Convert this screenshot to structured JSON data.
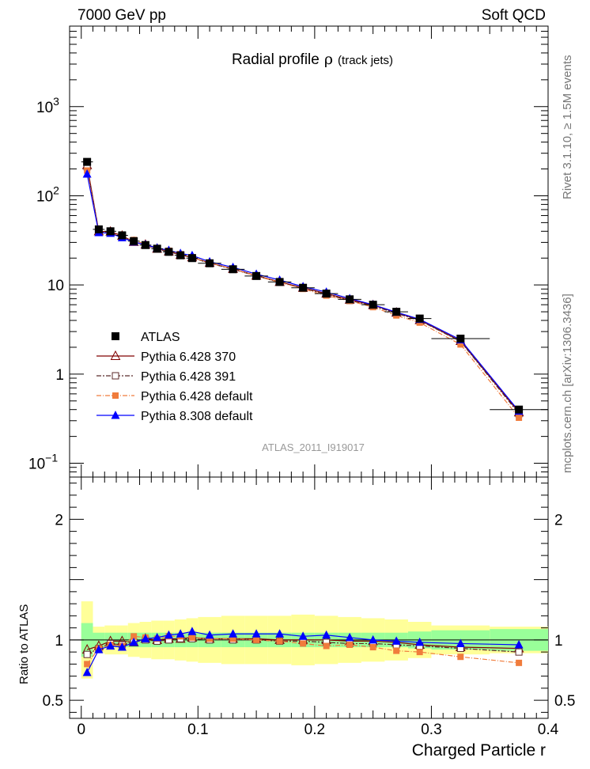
{
  "header": {
    "left": "7000 GeV pp",
    "right": "Soft QCD"
  },
  "chart_data": {
    "type": "line",
    "title": "Radial profile",
    "title_symbol": "ρ",
    "title_sub": "(track jets)",
    "analysis": "ATLAS_2011_I919017",
    "side_text_top": "Rivet 3.1.10, ≥ 1.5M events",
    "side_text_bottom": "mcplots.cern.ch [arXiv:1306.3436]",
    "xlabel": "Charged Particle r",
    "ratio_ylabel": "Ratio to ATLAS",
    "xlim": [
      -0.01,
      0.4
    ],
    "ylim": [
      0.07,
      8000
    ],
    "yscale": "log",
    "ratio_ylim": [
      0.35,
      2.35
    ],
    "x_ticks": [
      "0",
      "0.1",
      "0.2",
      "0.3",
      "0.4"
    ],
    "y_ticks": [
      "10⁻¹",
      "1",
      "10",
      "10²",
      "10³"
    ],
    "ratio_y_ticks": [
      "0.5",
      "1",
      "2"
    ],
    "legend_position": "lower-left",
    "x": [
      0.005,
      0.015,
      0.025,
      0.035,
      0.045,
      0.055,
      0.065,
      0.075,
      0.085,
      0.095,
      0.11,
      0.13,
      0.15,
      0.17,
      0.19,
      0.21,
      0.23,
      0.25,
      0.27,
      0.29,
      0.325,
      0.375
    ],
    "x_err": [
      0.005,
      0.005,
      0.005,
      0.005,
      0.005,
      0.005,
      0.005,
      0.005,
      0.005,
      0.005,
      0.01,
      0.01,
      0.01,
      0.01,
      0.01,
      0.01,
      0.01,
      0.01,
      0.01,
      0.01,
      0.025,
      0.025
    ],
    "data_series": {
      "name": "ATLAS",
      "color": "#000000",
      "values": [
        240,
        42,
        40,
        36,
        31,
        28,
        25.5,
        23.5,
        21.5,
        20,
        17.5,
        15,
        12.6,
        10.8,
        9.3,
        8,
        6.9,
        6,
        5,
        4.2,
        2.5,
        0.4
      ],
      "band_inner": [
        0.14,
        0.06,
        0.06,
        0.06,
        0.06,
        0.06,
        0.06,
        0.06,
        0.06,
        0.06,
        0.06,
        0.06,
        0.06,
        0.06,
        0.06,
        0.06,
        0.06,
        0.06,
        0.06,
        0.07,
        0.08,
        0.09
      ],
      "band_outer": [
        0.32,
        0.11,
        0.12,
        0.12,
        0.14,
        0.15,
        0.16,
        0.16,
        0.17,
        0.18,
        0.19,
        0.2,
        0.2,
        0.2,
        0.21,
        0.2,
        0.19,
        0.18,
        0.17,
        0.15,
        0.12,
        0.11
      ]
    },
    "series": [
      {
        "name": "Pythia 6.428 370",
        "color": "#800000",
        "marker": "triangle-open",
        "dash": "",
        "ratio": [
          0.92,
          0.95,
          0.99,
          0.99,
          0.98,
          1.01,
          1.0,
          1.01,
          1.01,
          1.02,
          1.01,
          1.01,
          1.01,
          1.0,
          1.0,
          1.0,
          0.99,
          0.99,
          0.98,
          0.96,
          0.94,
          0.93
        ]
      },
      {
        "name": "Pythia 6.428 391",
        "color": "#5b2a2a",
        "marker": "square-open",
        "dash": "6,2,2,2",
        "ratio": [
          0.88,
          0.93,
          0.97,
          0.96,
          0.98,
          1.0,
          0.99,
          1.0,
          1.01,
          1.01,
          1.0,
          1.0,
          1.0,
          0.99,
          0.99,
          0.98,
          0.97,
          0.97,
          0.96,
          0.95,
          0.93,
          0.9
        ]
      },
      {
        "name": "Pythia 6.428 default",
        "color": "#f07c3c",
        "marker": "square-filled",
        "dash": "6,2,1,2",
        "ratio": [
          0.8,
          0.93,
          0.96,
          0.95,
          1.03,
          1.02,
          1.01,
          1.03,
          1.03,
          1.02,
          1.01,
          1.01,
          1.0,
          0.99,
          0.97,
          0.95,
          0.96,
          0.94,
          0.91,
          0.9,
          0.86,
          0.81
        ]
      },
      {
        "name": "Pythia 8.308 default",
        "color": "#0000ff",
        "marker": "triangle-filled",
        "dash": "",
        "ratio": [
          0.73,
          0.92,
          0.95,
          0.94,
          0.98,
          1.01,
          1.02,
          1.04,
          1.05,
          1.07,
          1.04,
          1.05,
          1.05,
          1.05,
          1.03,
          1.04,
          1.02,
          1.0,
          0.99,
          0.98,
          0.97,
          0.96
        ]
      }
    ]
  }
}
